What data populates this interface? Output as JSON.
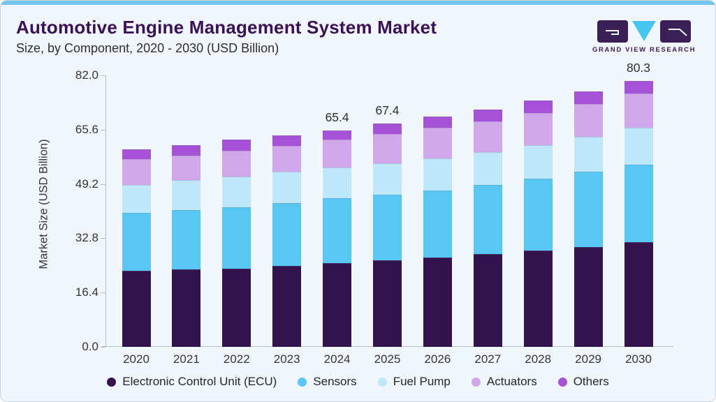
{
  "header": {
    "title": "Automotive Engine Management System Market",
    "subtitle": "Size, by Component, 2020 - 2030 (USD Billion)"
  },
  "logo": {
    "caption": "GRAND VIEW RESEARCH",
    "dark_color": "#3a2057",
    "cyan_color": "#45c5f1"
  },
  "chart_data": {
    "type": "bar",
    "stacked": true,
    "title": "Automotive Engine Management System Market Size, by Component, 2020 - 2030 (USD Billion)",
    "xlabel": "",
    "ylabel": "Market Size (USD Billion)",
    "ylim": [
      0,
      82
    ],
    "yticks": [
      0.0,
      16.4,
      32.8,
      49.2,
      65.6,
      82.0
    ],
    "grid": false,
    "legend_position": "bottom",
    "categories": [
      "2020",
      "2021",
      "2022",
      "2023",
      "2024",
      "2025",
      "2026",
      "2027",
      "2028",
      "2029",
      "2030"
    ],
    "series": [
      {
        "name": "Electronic Control Unit (ECU)",
        "color": "#33134e",
        "values": [
          23.0,
          23.3,
          23.7,
          24.4,
          25.4,
          26.2,
          27.0,
          28.1,
          29.0,
          30.2,
          31.7
        ]
      },
      {
        "name": "Sensors",
        "color": "#58c7f3",
        "values": [
          17.4,
          18.1,
          18.4,
          19.0,
          19.4,
          19.7,
          20.3,
          20.9,
          21.8,
          22.7,
          23.3
        ]
      },
      {
        "name": "Fuel Pump",
        "color": "#bfe7fa",
        "values": [
          8.6,
          8.9,
          9.3,
          9.6,
          9.4,
          9.6,
          9.7,
          9.9,
          10.2,
          10.6,
          11.1
        ]
      },
      {
        "name": "Actuators",
        "color": "#d0a7ea",
        "values": [
          7.7,
          7.5,
          7.9,
          7.7,
          8.4,
          8.8,
          9.2,
          9.2,
          9.6,
          9.9,
          10.4
        ]
      },
      {
        "name": "Others",
        "color": "#a551d8",
        "values": [
          2.9,
          3.1,
          3.3,
          3.1,
          2.8,
          3.1,
          3.4,
          3.6,
          3.8,
          3.8,
          3.8
        ]
      }
    ],
    "totals": [
      59.6,
      60.9,
      62.6,
      63.8,
      65.4,
      67.4,
      69.6,
      71.7,
      74.4,
      77.2,
      80.3
    ],
    "total_labels": {
      "2024": "65.4",
      "2025": "67.4",
      "2030": "80.3"
    }
  }
}
